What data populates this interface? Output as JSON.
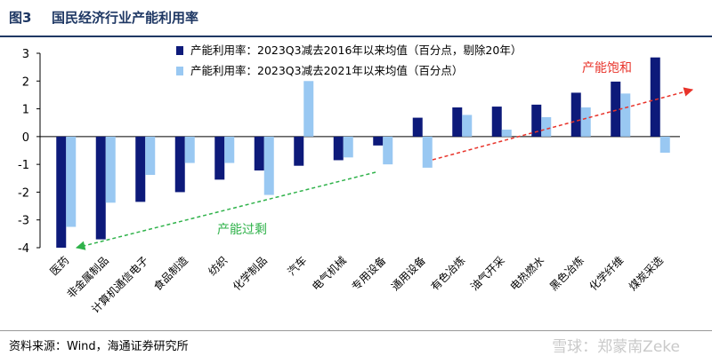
{
  "header": {
    "figure_number": "图3",
    "title": "国民经济行业产能利用率"
  },
  "footer": {
    "source": "资料来源：Wind，海通证券研究所",
    "watermark": "雪球：郑蒙南Zeke"
  },
  "colors": {
    "series1": "#0d1a7a",
    "series2": "#99c8f2",
    "title": "#1f3864",
    "annotation_red": "#e8332a",
    "annotation_green": "#2fb24a"
  },
  "chart_data": {
    "type": "bar",
    "title": "",
    "xlabel": "",
    "ylabel": "",
    "ylim": [
      -4,
      3
    ],
    "yticks": [
      3,
      2,
      1,
      0,
      -1,
      -2,
      -3,
      -4
    ],
    "grid": false,
    "legend_position": "top",
    "categories": [
      "医药",
      "非金属制品",
      "计算机通信电子",
      "食品制造",
      "纺织",
      "化学制品",
      "汽车",
      "电气机械",
      "专用设备",
      "通用设备",
      "有色冶炼",
      "油气开采",
      "电热燃水",
      "黑色冶炼",
      "化学纤维",
      "煤炭采选"
    ],
    "series": [
      {
        "name": "产能利用率：2023Q3减去2016年以来均值（百分点，剔除20年）",
        "values": [
          -4.0,
          -3.7,
          -2.35,
          -2.0,
          -1.55,
          -1.22,
          -1.05,
          -0.85,
          -0.32,
          0.68,
          1.05,
          1.08,
          1.15,
          1.58,
          1.98,
          2.85
        ]
      },
      {
        "name": "产能利用率：2023Q3减去2021年以来均值（百分点）",
        "values": [
          -3.25,
          -2.38,
          -1.38,
          -0.95,
          -0.95,
          -2.1,
          2.0,
          -0.75,
          -1.0,
          -1.12,
          0.78,
          0.25,
          0.7,
          1.05,
          1.55,
          -0.58
        ]
      }
    ],
    "annotations": [
      {
        "text": "产能饱和",
        "color": "red"
      },
      {
        "text": "产能过剩",
        "color": "green"
      }
    ]
  }
}
